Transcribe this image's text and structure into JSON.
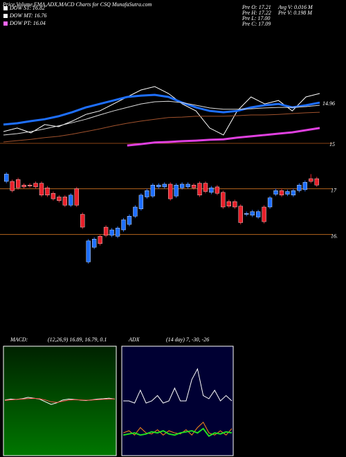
{
  "header": {
    "title": "Price,Volume,EMA,ADX,MACD Charts for CSQ MunafaSutra.com"
  },
  "legend": [
    {
      "label": "DOW ST: 16.82",
      "color": "#ffffff"
    },
    {
      "label": "DOW MT: 16.76",
      "color": "#ffffff"
    },
    {
      "label": "DOW PT: 16.04",
      "color": "#ff66ff"
    }
  ],
  "stats": [
    [
      "Pre  O: 17.21",
      "Pre  H: 17.22",
      "Pre  L: 17.00",
      "Pre  C: 17.09"
    ],
    [
      "Avg V: 0.016  M",
      "Pre  V: 0.198 M"
    ]
  ],
  "chart_data": [
    {
      "type": "line",
      "ylim": [
        13.8,
        17.6
      ],
      "annotations": [
        "14.96",
        "15"
      ],
      "series": [
        {
          "color": "#ffffff",
          "width": 1,
          "values": [
            14.37,
            14.5,
            14.32,
            14.63,
            14.55,
            14.76,
            15.01,
            15.14,
            15.4,
            15.66,
            15.92,
            16.05,
            15.79,
            15.4,
            15.14,
            14.5,
            14.24,
            15.14,
            15.66,
            15.4,
            15.53,
            15.14,
            15.66,
            15.79
          ]
        },
        {
          "color": "#1e6fff",
          "width": 3,
          "values": [
            14.63,
            14.68,
            14.76,
            14.83,
            14.94,
            15.09,
            15.27,
            15.4,
            15.53,
            15.66,
            15.71,
            15.74,
            15.66,
            15.45,
            15.27,
            15.14,
            15.09,
            15.14,
            15.27,
            15.35,
            15.4,
            15.27,
            15.35,
            15.45
          ]
        },
        {
          "color": "#dddddd",
          "width": 1,
          "values": [
            14.24,
            14.29,
            14.37,
            14.47,
            14.58,
            14.7,
            14.83,
            14.99,
            15.14,
            15.27,
            15.4,
            15.48,
            15.5,
            15.45,
            15.35,
            15.25,
            15.2,
            15.2,
            15.22,
            15.25,
            15.27,
            15.27,
            15.3,
            15.35
          ]
        },
        {
          "color": "#a0522d",
          "width": 1,
          "values": [
            13.98,
            14.03,
            14.08,
            14.14,
            14.19,
            14.27,
            14.37,
            14.47,
            14.58,
            14.68,
            14.76,
            14.83,
            14.89,
            14.91,
            14.94,
            14.94,
            14.94,
            14.96,
            14.99,
            14.99,
            15.01,
            15.04,
            15.07,
            15.09
          ]
        },
        {
          "color": "#e040e0",
          "width": 3,
          "values": [
            null,
            null,
            null,
            null,
            null,
            null,
            null,
            null,
            null,
            13.85,
            13.9,
            13.96,
            13.98,
            14.01,
            14.03,
            14.06,
            14.08,
            14.14,
            14.19,
            14.24,
            14.29,
            14.34,
            14.42,
            14.5
          ]
        }
      ]
    },
    {
      "type": "candlestick",
      "ylim": [
        15.43,
        17.36
      ],
      "yticks": [
        17,
        {
          "value": 16.5,
          "label": "16."
        }
      ],
      "up_color": "#1e6fff",
      "down_color": "#e8202a",
      "open": [
        17.08,
        17.08,
        17.1,
        17.04,
        17.04,
        17.06,
        17.06,
        17.01,
        16.95,
        16.91,
        16.91,
        16.82,
        17.0,
        16.72,
        16.2,
        16.36,
        16.48,
        16.58,
        16.49,
        16.48,
        16.55,
        16.61,
        16.7,
        16.78,
        16.91,
        16.92,
        17.02,
        17.02,
        17.05,
        16.92,
        17.01,
        17.02,
        17.04,
        17.06,
        17.06,
        16.96,
        17.02,
        16.96,
        16.86,
        16.86,
        16.81,
        16.72,
        16.71,
        16.69,
        16.8,
        16.8,
        16.94,
        16.98,
        16.94,
        16.93,
        16.98,
        16.99,
        17.11,
        17.11
      ],
      "close": [
        17.16,
        16.98,
        17.01,
        17.02,
        17.03,
        17.02,
        16.93,
        16.93,
        16.89,
        16.87,
        16.82,
        16.93,
        16.82,
        16.58,
        16.43,
        16.45,
        16.4,
        16.49,
        16.55,
        16.57,
        16.66,
        16.7,
        16.8,
        16.93,
        16.98,
        17.04,
        17.04,
        17.05,
        16.89,
        17.04,
        17.05,
        17.05,
        17.01,
        16.93,
        16.97,
        17.01,
        16.95,
        16.8,
        16.81,
        16.8,
        16.63,
        16.73,
        16.75,
        16.75,
        16.64,
        16.9,
        16.98,
        16.93,
        16.97,
        16.98,
        17.04,
        17.07,
        17.08,
        17.04
      ],
      "high": [
        17.18,
        17.1,
        17.12,
        17.06,
        17.06,
        17.08,
        17.08,
        17.03,
        16.97,
        16.93,
        16.93,
        16.95,
        17.02,
        16.74,
        16.45,
        16.47,
        16.5,
        16.6,
        16.57,
        16.59,
        16.68,
        16.72,
        16.82,
        16.95,
        17.0,
        17.06,
        17.06,
        17.07,
        17.07,
        17.06,
        17.07,
        17.07,
        17.06,
        17.08,
        17.08,
        17.03,
        17.04,
        16.98,
        16.88,
        16.88,
        16.83,
        16.75,
        16.77,
        16.77,
        16.82,
        16.92,
        17.0,
        17.0,
        16.99,
        17.0,
        17.06,
        17.09,
        17.16,
        17.13
      ],
      "low": [
        17.06,
        16.96,
        16.99,
        17.0,
        17.01,
        17.0,
        16.91,
        16.91,
        16.87,
        16.85,
        16.8,
        16.8,
        16.8,
        16.56,
        16.18,
        16.34,
        16.38,
        16.47,
        16.47,
        16.46,
        16.53,
        16.59,
        16.68,
        16.76,
        16.89,
        16.9,
        17.0,
        17.0,
        16.87,
        16.9,
        16.99,
        17.0,
        16.99,
        16.91,
        16.95,
        16.94,
        16.93,
        16.78,
        16.79,
        16.78,
        16.61,
        16.7,
        16.69,
        16.67,
        16.62,
        16.78,
        16.92,
        16.91,
        16.92,
        16.91,
        16.96,
        16.97,
        17.06,
        17.02
      ]
    },
    {
      "type": "line",
      "title": "MACD:",
      "subtitle": "(12,26,9) 16.89, 16.79, 0.1",
      "ylim": [
        -3,
        3
      ],
      "series": [
        {
          "color": "#ffffff",
          "width": 1,
          "values": [
            0.05,
            0.1,
            0.08,
            0.12,
            0.2,
            0.15,
            0.1,
            -0.05,
            -0.2,
            -0.1,
            0.05,
            0.1,
            0.08,
            0.05,
            0.02,
            0.06,
            0.1,
            0.12,
            0.15,
            0.1
          ]
        },
        {
          "color": "#ff5050",
          "width": 1,
          "values": [
            0.03,
            0.06,
            0.08,
            0.1,
            0.13,
            0.14,
            0.12,
            0.05,
            -0.05,
            -0.08,
            -0.02,
            0.04,
            0.07,
            0.06,
            0.04,
            0.05,
            0.07,
            0.09,
            0.11,
            0.11
          ]
        }
      ]
    },
    {
      "type": "line",
      "title": "ADX",
      "subtitle": "(14 day) 7, -30, -26",
      "ylim": [
        0,
        100
      ],
      "series": [
        {
          "color": "#ffffff",
          "width": 1,
          "values": [
            50,
            50,
            48,
            60,
            48,
            50,
            55,
            48,
            50,
            62,
            50,
            50,
            70,
            80,
            55,
            52,
            60,
            50,
            55,
            50
          ]
        },
        {
          "color": "#ff8c1a",
          "width": 1,
          "values": [
            20,
            22,
            18,
            25,
            20,
            19,
            23,
            18,
            22,
            20,
            19,
            23,
            18,
            25,
            30,
            20,
            18,
            22,
            18,
            24
          ]
        },
        {
          "color": "#22dd22",
          "width": 2,
          "values": [
            18,
            19,
            20,
            18,
            19,
            21,
            20,
            22,
            19,
            18,
            20,
            21,
            22,
            20,
            24,
            17,
            20,
            19,
            21,
            20
          ]
        }
      ]
    }
  ]
}
